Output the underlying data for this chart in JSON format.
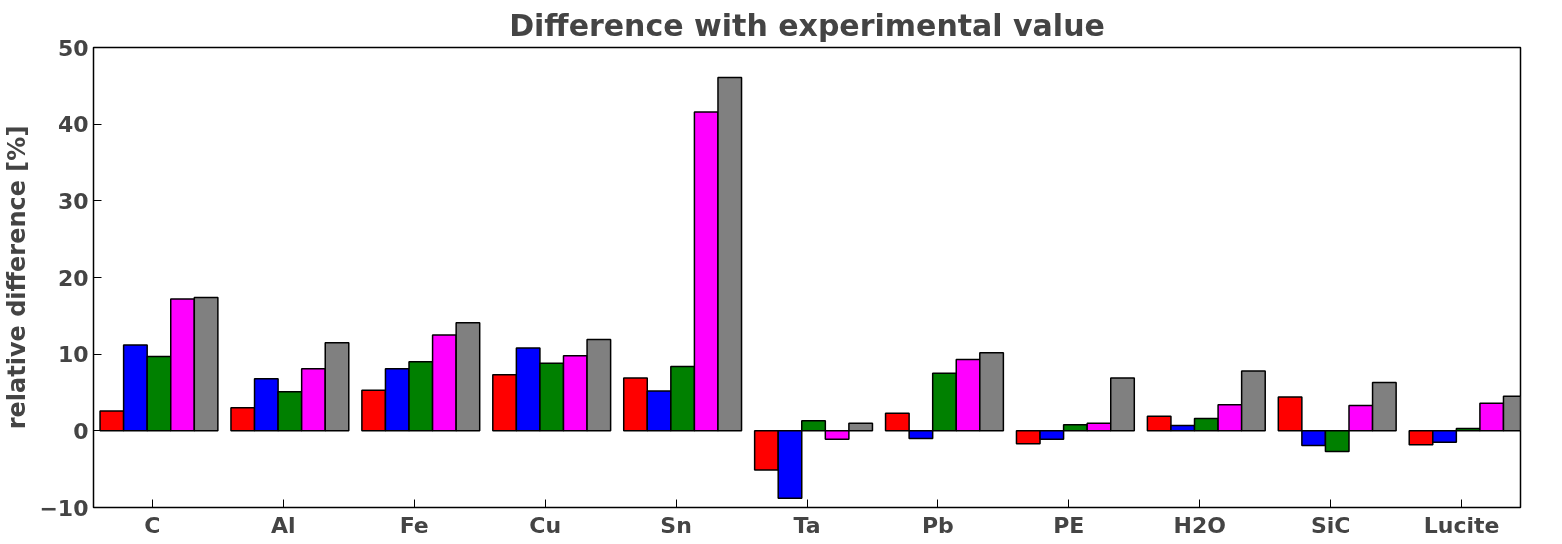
{
  "chart_data": {
    "type": "bar",
    "title": "Difference with experimental value",
    "ylabel": "relative difference [%]",
    "categories": [
      "C",
      "Al",
      "Fe",
      "Cu",
      "Sn",
      "Ta",
      "Pb",
      "PE",
      "H2O",
      "SiC",
      "Lucite"
    ],
    "series": [
      {
        "color": "#ff0000",
        "values": [
          2.6,
          3.0,
          5.3,
          7.3,
          6.9,
          -5.1,
          2.3,
          -1.7,
          1.9,
          4.4,
          -1.8
        ]
      },
      {
        "color": "#0000ff",
        "values": [
          11.2,
          6.8,
          8.1,
          10.8,
          5.2,
          -8.8,
          -1.0,
          -1.1,
          0.7,
          -1.9,
          -1.5
        ]
      },
      {
        "color": "#008000",
        "values": [
          9.7,
          5.1,
          9.0,
          8.8,
          8.4,
          1.3,
          7.5,
          0.8,
          1.6,
          -2.7,
          0.3
        ]
      },
      {
        "color": "#ff00ff",
        "values": [
          17.2,
          8.1,
          12.5,
          9.8,
          41.6,
          -1.1,
          9.3,
          1.0,
          3.4,
          3.3,
          3.6
        ]
      },
      {
        "color": "#808080",
        "values": [
          17.4,
          11.5,
          14.1,
          11.9,
          46.1,
          1.0,
          10.2,
          6.9,
          7.8,
          6.3,
          4.5
        ]
      }
    ],
    "ylim": [
      -10,
      50
    ],
    "yticks": [
      -10,
      0,
      10,
      20,
      30,
      40,
      50
    ],
    "grid": false
  }
}
